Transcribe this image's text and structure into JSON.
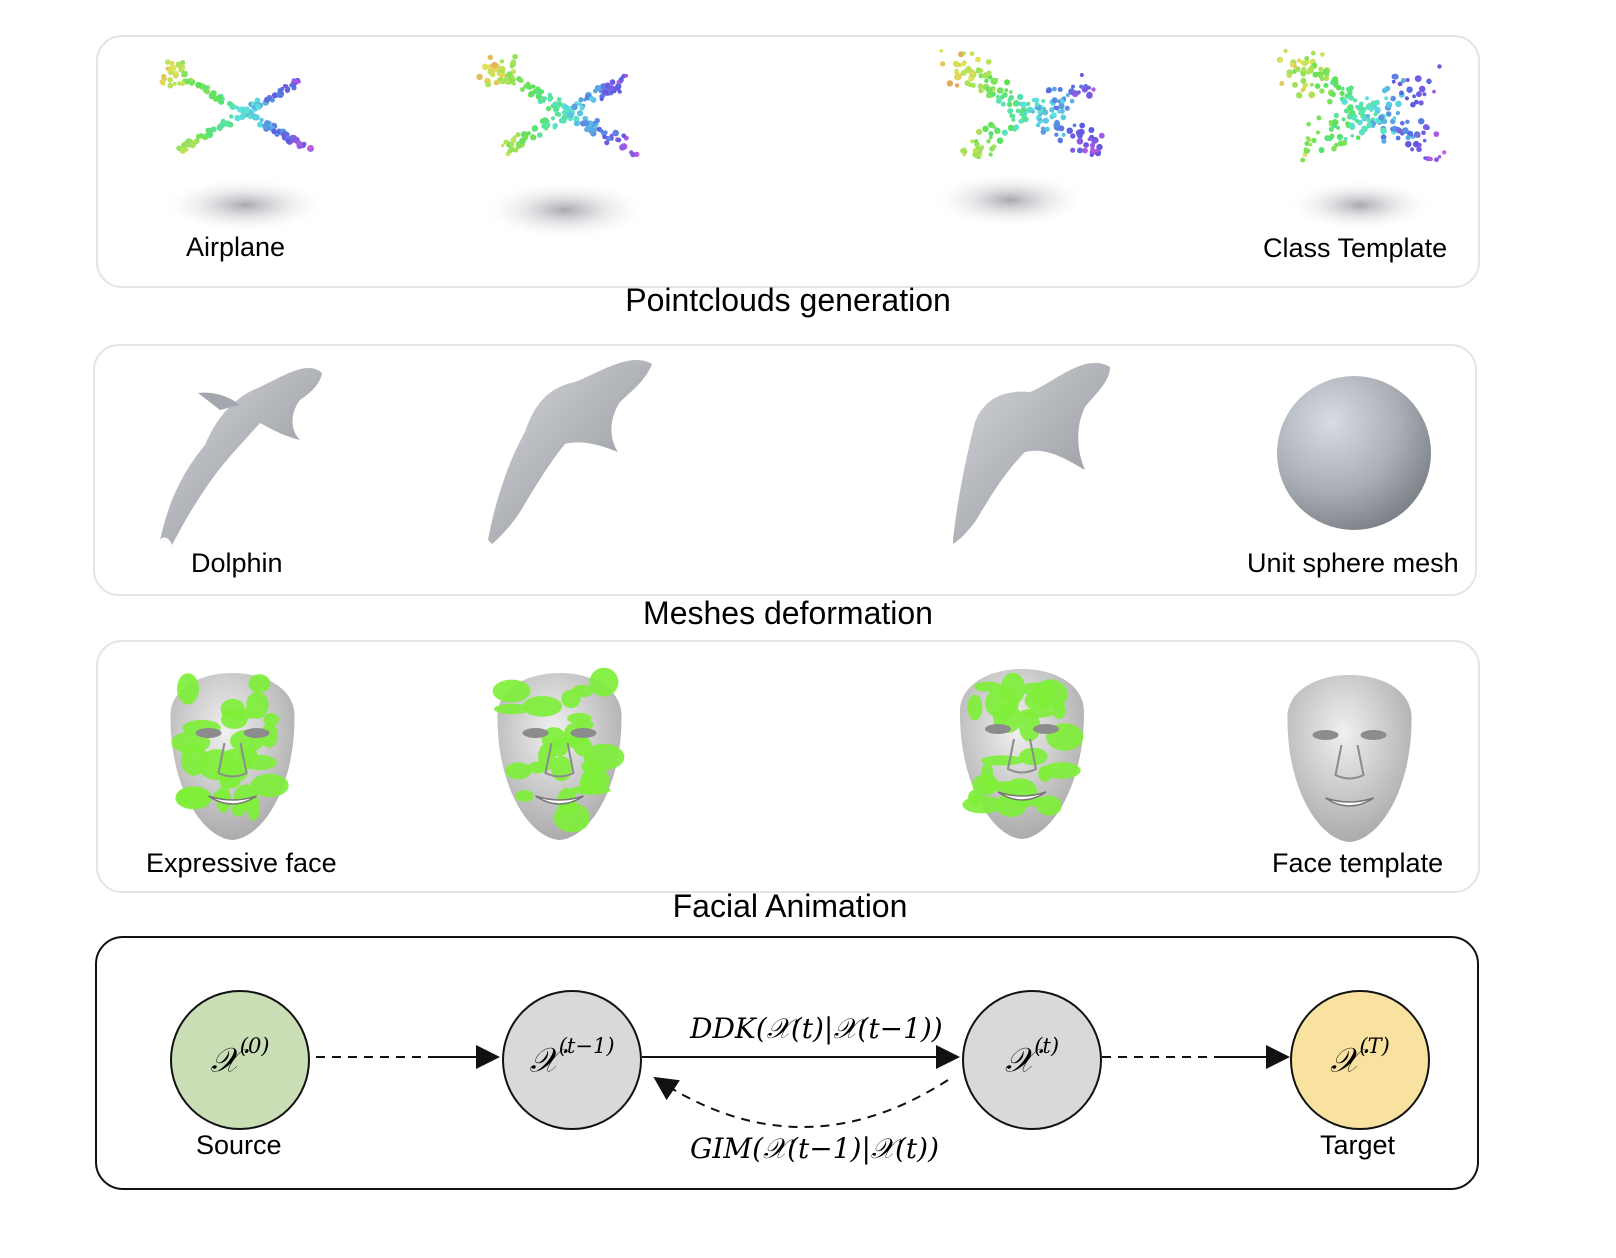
{
  "rows": [
    {
      "caption": "Pointclouds generation",
      "source_label": "Airplane",
      "target_label": "Class Template"
    },
    {
      "caption": "Meshes deformation",
      "source_label": "Dolphin",
      "target_label": "Unit sphere mesh"
    },
    {
      "caption": "Facial Animation",
      "source_label": "Expressive face",
      "target_label": "Face template"
    }
  ],
  "graph": {
    "nodes": [
      {
        "symbol": "𝒳",
        "sup": "(0)",
        "label": "Source",
        "fill": "#cadeb5"
      },
      {
        "symbol": "𝒳",
        "sup": "(t−1)",
        "label": "",
        "fill": "#d9d9d9"
      },
      {
        "symbol": "𝒳",
        "sup": "(t)",
        "label": "",
        "fill": "#d9d9d9"
      },
      {
        "symbol": "𝒳",
        "sup": "(T)",
        "label": "Target",
        "fill": "#f9e29f"
      }
    ],
    "forward_edge": "DDK(𝒳(t)|𝒳(t−1))",
    "backward_edge": "GIM(𝒳(t−1)|𝒳(t))"
  },
  "colors": {
    "panel_border": "#e4e4e4",
    "face_green": "#7fef3a",
    "mesh_grey": "#b5b8bd"
  }
}
